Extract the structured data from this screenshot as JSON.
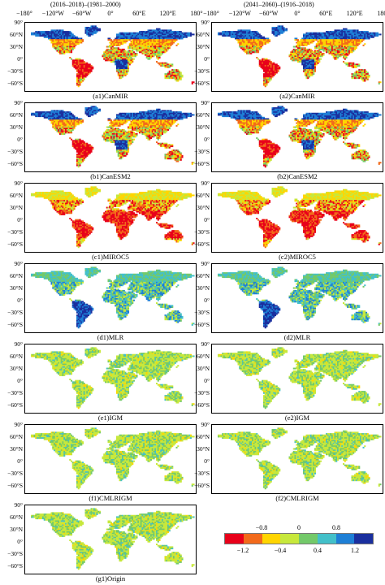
{
  "columns": [
    {
      "title": "(2016–2018)–(1981–2000)"
    },
    {
      "title": "(2041–2060)–(1916–2018)"
    }
  ],
  "top_axis_labels": [
    "−180°",
    "−120°W",
    "−60°W",
    "0°",
    "60°E",
    "120°E",
    "180°"
  ],
  "lat_labels": [
    "90°",
    "60°N",
    "30°N",
    "0°",
    "−30°S",
    "−60°S"
  ],
  "panels": [
    {
      "id": "a1",
      "label": "(a1)CanMIR",
      "scheme": "strong"
    },
    {
      "id": "a2",
      "label": "(a2)CanMIR",
      "scheme": "strong"
    },
    {
      "id": "b1",
      "label": "(b1)CanESM2",
      "scheme": "strong"
    },
    {
      "id": "b2",
      "label": "(b2)CanESM2",
      "scheme": "strong"
    },
    {
      "id": "c1",
      "label": "(c1)MIROC5",
      "scheme": "red"
    },
    {
      "id": "c2",
      "label": "(c2)MIROC5",
      "scheme": "red"
    },
    {
      "id": "d1",
      "label": "(d1)MLR",
      "scheme": "blue"
    },
    {
      "id": "d2",
      "label": "(d2)MLR",
      "scheme": "blue"
    },
    {
      "id": "e1",
      "label": "(e1)IGM",
      "scheme": "mild"
    },
    {
      "id": "e2",
      "label": "(e2)IGM",
      "scheme": "mild"
    },
    {
      "id": "f1",
      "label": "(f1)CMLRIGM",
      "scheme": "mild"
    },
    {
      "id": "f2",
      "label": "(f2)CMLRIGM",
      "scheme": "mild"
    },
    {
      "id": "g1",
      "label": "(g1)Origin",
      "scheme": "mild"
    }
  ],
  "legend": {
    "colors": [
      "#e8001a",
      "#f26a1b",
      "#ffd500",
      "#c7e83c",
      "#73c96a",
      "#43c0c9",
      "#1e7fd6",
      "#1a2f9e"
    ],
    "labels_top": [
      "−0.8",
      "0",
      "0.8"
    ],
    "labels_bottom": [
      "−1.2",
      "−0.4",
      "0.4",
      "1.2"
    ]
  }
}
